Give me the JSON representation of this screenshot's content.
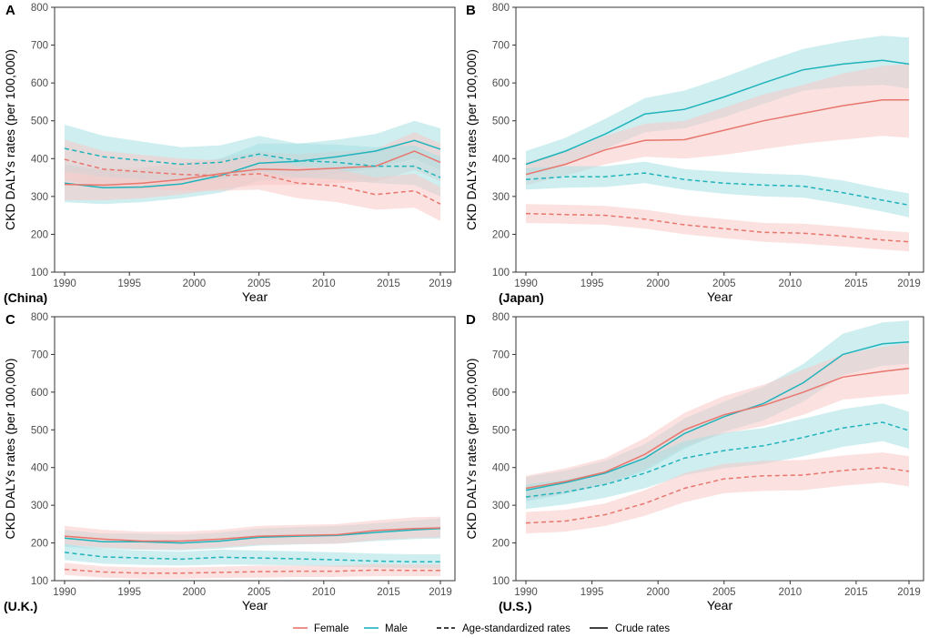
{
  "legend": {
    "female": "Female",
    "male": "Male",
    "age_standardized": "Age-standardized rates",
    "crude": "Crude rates"
  },
  "colors": {
    "female": "#e8766d",
    "female_band": "#f8c9c6",
    "male": "#1fb3bb",
    "male_band": "#a8e0e3"
  },
  "chart_data": [
    {
      "panel": "A",
      "country_label": "(China)",
      "type": "line",
      "xlabel": "Year",
      "ylabel": "CKD DALYs rates (per 100,000)",
      "xlim": [
        1990,
        2019
      ],
      "ylim": [
        100,
        800
      ],
      "xticks": [
        1990,
        1995,
        2000,
        2005,
        2010,
        2015,
        2019
      ],
      "yticks": [
        100,
        200,
        300,
        400,
        500,
        600,
        700,
        800
      ],
      "x": [
        1990,
        1993,
        1996,
        1999,
        2002,
        2005,
        2008,
        2011,
        2014,
        2017,
        2019
      ],
      "series": [
        {
          "name": "Male crude",
          "sex": "male",
          "kind": "crude",
          "values": [
            335,
            323,
            325,
            333,
            355,
            388,
            393,
            405,
            420,
            448,
            425
          ],
          "lower": [
            285,
            280,
            285,
            295,
            310,
            340,
            348,
            360,
            375,
            400,
            370
          ],
          "upper": [
            385,
            370,
            368,
            375,
            400,
            440,
            440,
            450,
            465,
            500,
            480
          ]
        },
        {
          "name": "Female crude",
          "sex": "female",
          "kind": "crude",
          "values": [
            332,
            330,
            335,
            345,
            360,
            372,
            370,
            375,
            380,
            420,
            390
          ],
          "lower": [
            290,
            290,
            295,
            305,
            320,
            330,
            330,
            335,
            340,
            370,
            340
          ],
          "upper": [
            375,
            372,
            376,
            388,
            400,
            418,
            412,
            418,
            425,
            470,
            440
          ]
        },
        {
          "name": "Male age-standardized",
          "sex": "male",
          "kind": "age",
          "values": [
            427,
            405,
            395,
            385,
            390,
            412,
            395,
            390,
            380,
            380,
            350
          ],
          "lower": [
            365,
            352,
            345,
            340,
            345,
            365,
            350,
            345,
            335,
            330,
            300
          ],
          "upper": [
            490,
            460,
            445,
            430,
            435,
            460,
            440,
            437,
            430,
            435,
            405
          ]
        },
        {
          "name": "Female age-standardized",
          "sex": "female",
          "kind": "age",
          "values": [
            398,
            372,
            365,
            358,
            355,
            360,
            335,
            328,
            305,
            315,
            280
          ],
          "lower": [
            345,
            325,
            320,
            315,
            315,
            318,
            295,
            285,
            265,
            270,
            235
          ],
          "upper": [
            450,
            420,
            410,
            400,
            395,
            405,
            380,
            372,
            350,
            360,
            325
          ]
        }
      ]
    },
    {
      "panel": "B",
      "country_label": "(Japan)",
      "type": "line",
      "xlabel": "Year",
      "ylabel": "CKD DALYs rates (per 100,000)",
      "xlim": [
        1990,
        2019
      ],
      "ylim": [
        100,
        800
      ],
      "xticks": [
        1990,
        1995,
        2000,
        2005,
        2010,
        2015,
        2019
      ],
      "yticks": [
        100,
        200,
        300,
        400,
        500,
        600,
        700,
        800
      ],
      "x": [
        1990,
        1993,
        1996,
        1999,
        2002,
        2005,
        2008,
        2011,
        2014,
        2017,
        2019
      ],
      "series": [
        {
          "name": "Male crude",
          "sex": "male",
          "kind": "crude",
          "values": [
            385,
            420,
            465,
            518,
            530,
            563,
            600,
            635,
            650,
            660,
            650
          ],
          "lower": [
            355,
            385,
            425,
            470,
            480,
            510,
            545,
            580,
            590,
            595,
            585
          ],
          "upper": [
            420,
            455,
            505,
            560,
            580,
            615,
            655,
            690,
            710,
            725,
            720
          ]
        },
        {
          "name": "Female crude",
          "sex": "female",
          "kind": "crude",
          "values": [
            358,
            385,
            423,
            448,
            450,
            475,
            500,
            520,
            540,
            555,
            555
          ],
          "lower": [
            330,
            355,
            385,
            405,
            400,
            410,
            425,
            440,
            450,
            460,
            455
          ],
          "upper": [
            390,
            420,
            460,
            492,
            500,
            535,
            570,
            595,
            625,
            645,
            650
          ]
        },
        {
          "name": "Male age-standardized",
          "sex": "male",
          "kind": "age",
          "values": [
            345,
            352,
            352,
            362,
            345,
            335,
            330,
            327,
            310,
            290,
            277
          ],
          "lower": [
            318,
            323,
            325,
            335,
            318,
            307,
            300,
            297,
            280,
            260,
            245
          ],
          "upper": [
            375,
            380,
            380,
            392,
            372,
            365,
            360,
            357,
            342,
            320,
            308
          ]
        },
        {
          "name": "Female age-standardized",
          "sex": "female",
          "kind": "age",
          "values": [
            255,
            252,
            250,
            240,
            225,
            215,
            205,
            203,
            195,
            185,
            180
          ],
          "lower": [
            230,
            228,
            225,
            215,
            200,
            190,
            180,
            175,
            168,
            160,
            155
          ],
          "upper": [
            280,
            278,
            275,
            265,
            250,
            240,
            230,
            228,
            220,
            210,
            205
          ]
        }
      ]
    },
    {
      "panel": "C",
      "country_label": "(U.K.)",
      "type": "line",
      "xlabel": "Year",
      "ylabel": "CKD DALYs rates (per 100,000)",
      "xlim": [
        1990,
        2019
      ],
      "ylim": [
        100,
        800
      ],
      "xticks": [
        1990,
        1995,
        2000,
        2005,
        2010,
        2015,
        2019
      ],
      "yticks": [
        100,
        200,
        300,
        400,
        500,
        600,
        700,
        800
      ],
      "x": [
        1990,
        1993,
        1996,
        1999,
        2002,
        2005,
        2008,
        2011,
        2014,
        2017,
        2019
      ],
      "series": [
        {
          "name": "Male crude",
          "sex": "male",
          "kind": "crude",
          "values": [
            213,
            203,
            203,
            200,
            205,
            215,
            218,
            220,
            228,
            235,
            238
          ],
          "lower": [
            190,
            183,
            182,
            180,
            185,
            193,
            196,
            198,
            205,
            210,
            212
          ],
          "upper": [
            235,
            225,
            225,
            222,
            228,
            238,
            242,
            245,
            252,
            260,
            265
          ]
        },
        {
          "name": "Female crude",
          "sex": "female",
          "kind": "crude",
          "values": [
            218,
            210,
            205,
            205,
            210,
            218,
            220,
            222,
            233,
            238,
            240
          ],
          "lower": [
            195,
            188,
            183,
            183,
            188,
            195,
            197,
            198,
            208,
            213,
            215
          ],
          "upper": [
            245,
            235,
            230,
            230,
            235,
            245,
            248,
            250,
            260,
            268,
            270
          ]
        },
        {
          "name": "Male age-standardized",
          "sex": "male",
          "kind": "age",
          "values": [
            175,
            163,
            160,
            157,
            162,
            160,
            158,
            155,
            152,
            150,
            150
          ],
          "lower": [
            155,
            145,
            142,
            140,
            143,
            142,
            140,
            137,
            135,
            133,
            132
          ],
          "upper": [
            197,
            183,
            180,
            177,
            182,
            180,
            178,
            175,
            172,
            170,
            170
          ]
        },
        {
          "name": "Female age-standardized",
          "sex": "female",
          "kind": "age",
          "values": [
            130,
            123,
            120,
            120,
            122,
            124,
            125,
            125,
            128,
            127,
            127
          ],
          "lower": [
            115,
            108,
            105,
            105,
            107,
            108,
            110,
            110,
            112,
            112,
            112
          ],
          "upper": [
            147,
            138,
            135,
            135,
            137,
            140,
            140,
            140,
            144,
            143,
            143
          ]
        }
      ]
    },
    {
      "panel": "D",
      "country_label": "(U.S.)",
      "type": "line",
      "xlabel": "Year",
      "ylabel": "CKD DALYs rates (per 100,000)",
      "xlim": [
        1990,
        2019
      ],
      "ylim": [
        100,
        800
      ],
      "xticks": [
        1990,
        1995,
        2000,
        2005,
        2010,
        2015,
        2019
      ],
      "yticks": [
        100,
        200,
        300,
        400,
        500,
        600,
        700,
        800
      ],
      "x": [
        1990,
        1993,
        1996,
        1999,
        2002,
        2005,
        2008,
        2011,
        2014,
        2017,
        2019
      ],
      "series": [
        {
          "name": "Male crude",
          "sex": "male",
          "kind": "crude",
          "values": [
            340,
            360,
            385,
            425,
            490,
            535,
            570,
            625,
            700,
            728,
            733
          ],
          "lower": [
            310,
            330,
            355,
            390,
            450,
            495,
            525,
            575,
            645,
            670,
            675
          ],
          "upper": [
            375,
            392,
            418,
            462,
            530,
            575,
            615,
            675,
            755,
            785,
            790
          ]
        },
        {
          "name": "Female crude",
          "sex": "female",
          "kind": "crude",
          "values": [
            345,
            363,
            388,
            435,
            500,
            540,
            565,
            600,
            640,
            655,
            663
          ],
          "lower": [
            315,
            332,
            355,
            395,
            455,
            490,
            510,
            540,
            580,
            590,
            595
          ],
          "upper": [
            378,
            398,
            425,
            478,
            545,
            590,
            620,
            660,
            700,
            720,
            730
          ]
        },
        {
          "name": "Male age-standardized",
          "sex": "male",
          "kind": "age",
          "values": [
            322,
            335,
            355,
            385,
            425,
            445,
            458,
            480,
            505,
            520,
            498
          ],
          "lower": [
            290,
            302,
            320,
            345,
            380,
            398,
            410,
            430,
            455,
            470,
            450
          ],
          "upper": [
            355,
            368,
            390,
            425,
            470,
            492,
            505,
            530,
            555,
            570,
            548
          ]
        },
        {
          "name": "Female age-standardized",
          "sex": "female",
          "kind": "age",
          "values": [
            253,
            258,
            275,
            305,
            345,
            370,
            378,
            380,
            392,
            400,
            390
          ],
          "lower": [
            225,
            230,
            245,
            272,
            308,
            332,
            338,
            340,
            352,
            360,
            350
          ],
          "upper": [
            282,
            288,
            305,
            340,
            385,
            410,
            418,
            420,
            432,
            440,
            430
          ]
        }
      ]
    }
  ]
}
